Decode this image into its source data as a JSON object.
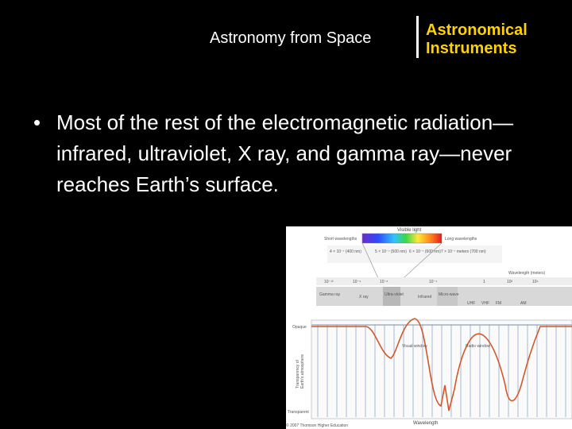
{
  "header": {
    "section_title": "Astronomy from Space",
    "chapter_title_line1": "Astronomical",
    "chapter_title_line2": "Instruments"
  },
  "bullet": {
    "symbol": "•",
    "text": "Most of the rest of the electromagnetic radiation—infrared, ultraviolet, X ray, and gamma ray—never reaches Earth’s surface."
  },
  "figure": {
    "visible_light_label": "Visible light",
    "short_wavelengths": "Short wavelengths",
    "long_wavelengths": "Long wavelengths",
    "wavelength_meters": "Wavelength (meters)",
    "opaque_label": "Opaque",
    "transparent_label": "Transparent",
    "y_axis_label_line1": "Transparency of",
    "y_axis_label_line2": "Earth's atmosphere",
    "visual_window": "Visual window",
    "radio_window": "Radio window",
    "x_axis_label": "Wavelength",
    "copyright": "© 2007 Thomson Higher Education",
    "bands": [
      "Gamma ray",
      "X ray",
      "Ultra-violet",
      "Infrared",
      "Micro-wave",
      "UHF",
      "VHF",
      "FM",
      "AM"
    ],
    "scale_ticks": [
      "10⁻¹²",
      "10⁻⁹",
      "10⁻⁸",
      "10⁻⁴",
      "1",
      "10²",
      "10⁴"
    ],
    "visible_ticks": [
      "4 × 10⁻⁷ (400 nm)",
      "5 × 10⁻⁷ (500 nm)",
      "6 × 10⁻⁷ (600 nm)",
      "7 × 10⁻⁷ meters (700 nm)"
    ]
  },
  "colors": {
    "background": "#000000",
    "text": "#ffffff",
    "accent_yellow": "#ffd200",
    "curve": "#d2582a"
  }
}
